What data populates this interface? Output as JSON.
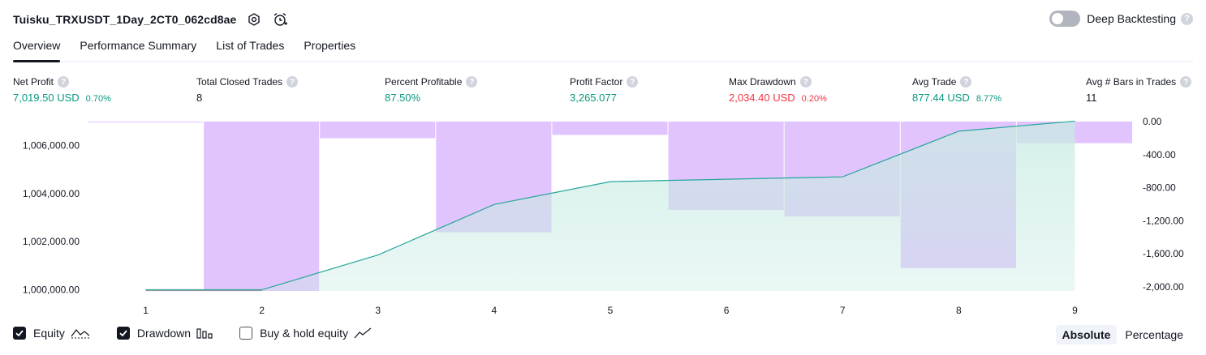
{
  "header": {
    "title": "Tuisku_TRXUSDT_1Day_2CT0_062cd8ae",
    "deep_backtesting_label": "Deep Backtesting",
    "help_glyph": "?"
  },
  "icons": [
    "settings-icon",
    "alarm-add-icon",
    "help-icon",
    "equity-line-icon",
    "drawdown-bars-icon",
    "buy-hold-line-icon",
    "check-icon"
  ],
  "tabs": [
    {
      "label": "Overview",
      "active": true
    },
    {
      "label": "Performance Summary",
      "active": false
    },
    {
      "label": "List of Trades",
      "active": false
    },
    {
      "label": "Properties",
      "active": false
    }
  ],
  "stats": {
    "net_profit": {
      "label": "Net Profit",
      "value": "7,019.50 USD",
      "pct": "0.70%"
    },
    "total_closed_trades": {
      "label": "Total Closed Trades",
      "value": "8"
    },
    "percent_profitable": {
      "label": "Percent Profitable",
      "value": "87.50%"
    },
    "profit_factor": {
      "label": "Profit Factor",
      "value": "3,265.077"
    },
    "max_drawdown": {
      "label": "Max Drawdown",
      "value": "2,034.40 USD",
      "pct": "0.20%"
    },
    "avg_trade": {
      "label": "Avg Trade",
      "value": "877.44 USD",
      "pct": "8.77%"
    },
    "avg_bars": {
      "label": "Avg # Bars in Trades",
      "value": "11"
    }
  },
  "colors": {
    "equity_line": "#26a69a",
    "equity_fill": "#c8ebe3",
    "drawdown_fill": "#e1c4fd",
    "profit": "#089981",
    "loss": "#f23645",
    "axis_text": "#131722"
  },
  "chart_data": {
    "type": "area",
    "x": [
      1,
      2,
      3,
      4,
      5,
      6,
      7,
      8,
      9
    ],
    "x_tick_labels": [
      "1",
      "2",
      "3",
      "4",
      "5",
      "6",
      "7",
      "8",
      "9"
    ],
    "left_axis": {
      "tick_values": [
        1000000,
        1002000,
        1004000,
        1006000
      ],
      "tick_labels": [
        "1,000,000.00",
        "1,002,000.00",
        "1,004,000.00",
        "1,006,000.00"
      ],
      "range": [
        999950,
        1007000
      ]
    },
    "right_axis": {
      "tick_values": [
        0,
        -400,
        -800,
        -1200,
        -1600,
        -2000
      ],
      "tick_labels": [
        "0.00",
        "-400.00",
        "-800.00",
        "-1,200.00",
        "-1,600.00",
        "-2,000.00"
      ],
      "range": [
        -2034.4,
        0
      ]
    },
    "series": [
      {
        "name": "Equity",
        "axis": "left",
        "values": [
          1000000,
          1000000,
          1001450,
          1003550,
          1004500,
          1004600,
          1004700,
          1006600,
          1007019.5
        ]
      },
      {
        "name": "Drawdown",
        "axis": "right",
        "values": [
          -10,
          -2034.4,
          -200,
          -1330,
          -160,
          -1060,
          -1140,
          -1760,
          -260
        ]
      }
    ]
  },
  "legend": {
    "equity": {
      "label": "Equity",
      "checked": true
    },
    "drawdown": {
      "label": "Drawdown",
      "checked": true
    },
    "buy_hold": {
      "label": "Buy & hold equity",
      "checked": false
    }
  },
  "mode": {
    "absolute": "Absolute",
    "percentage": "Percentage",
    "selected": "Absolute"
  }
}
